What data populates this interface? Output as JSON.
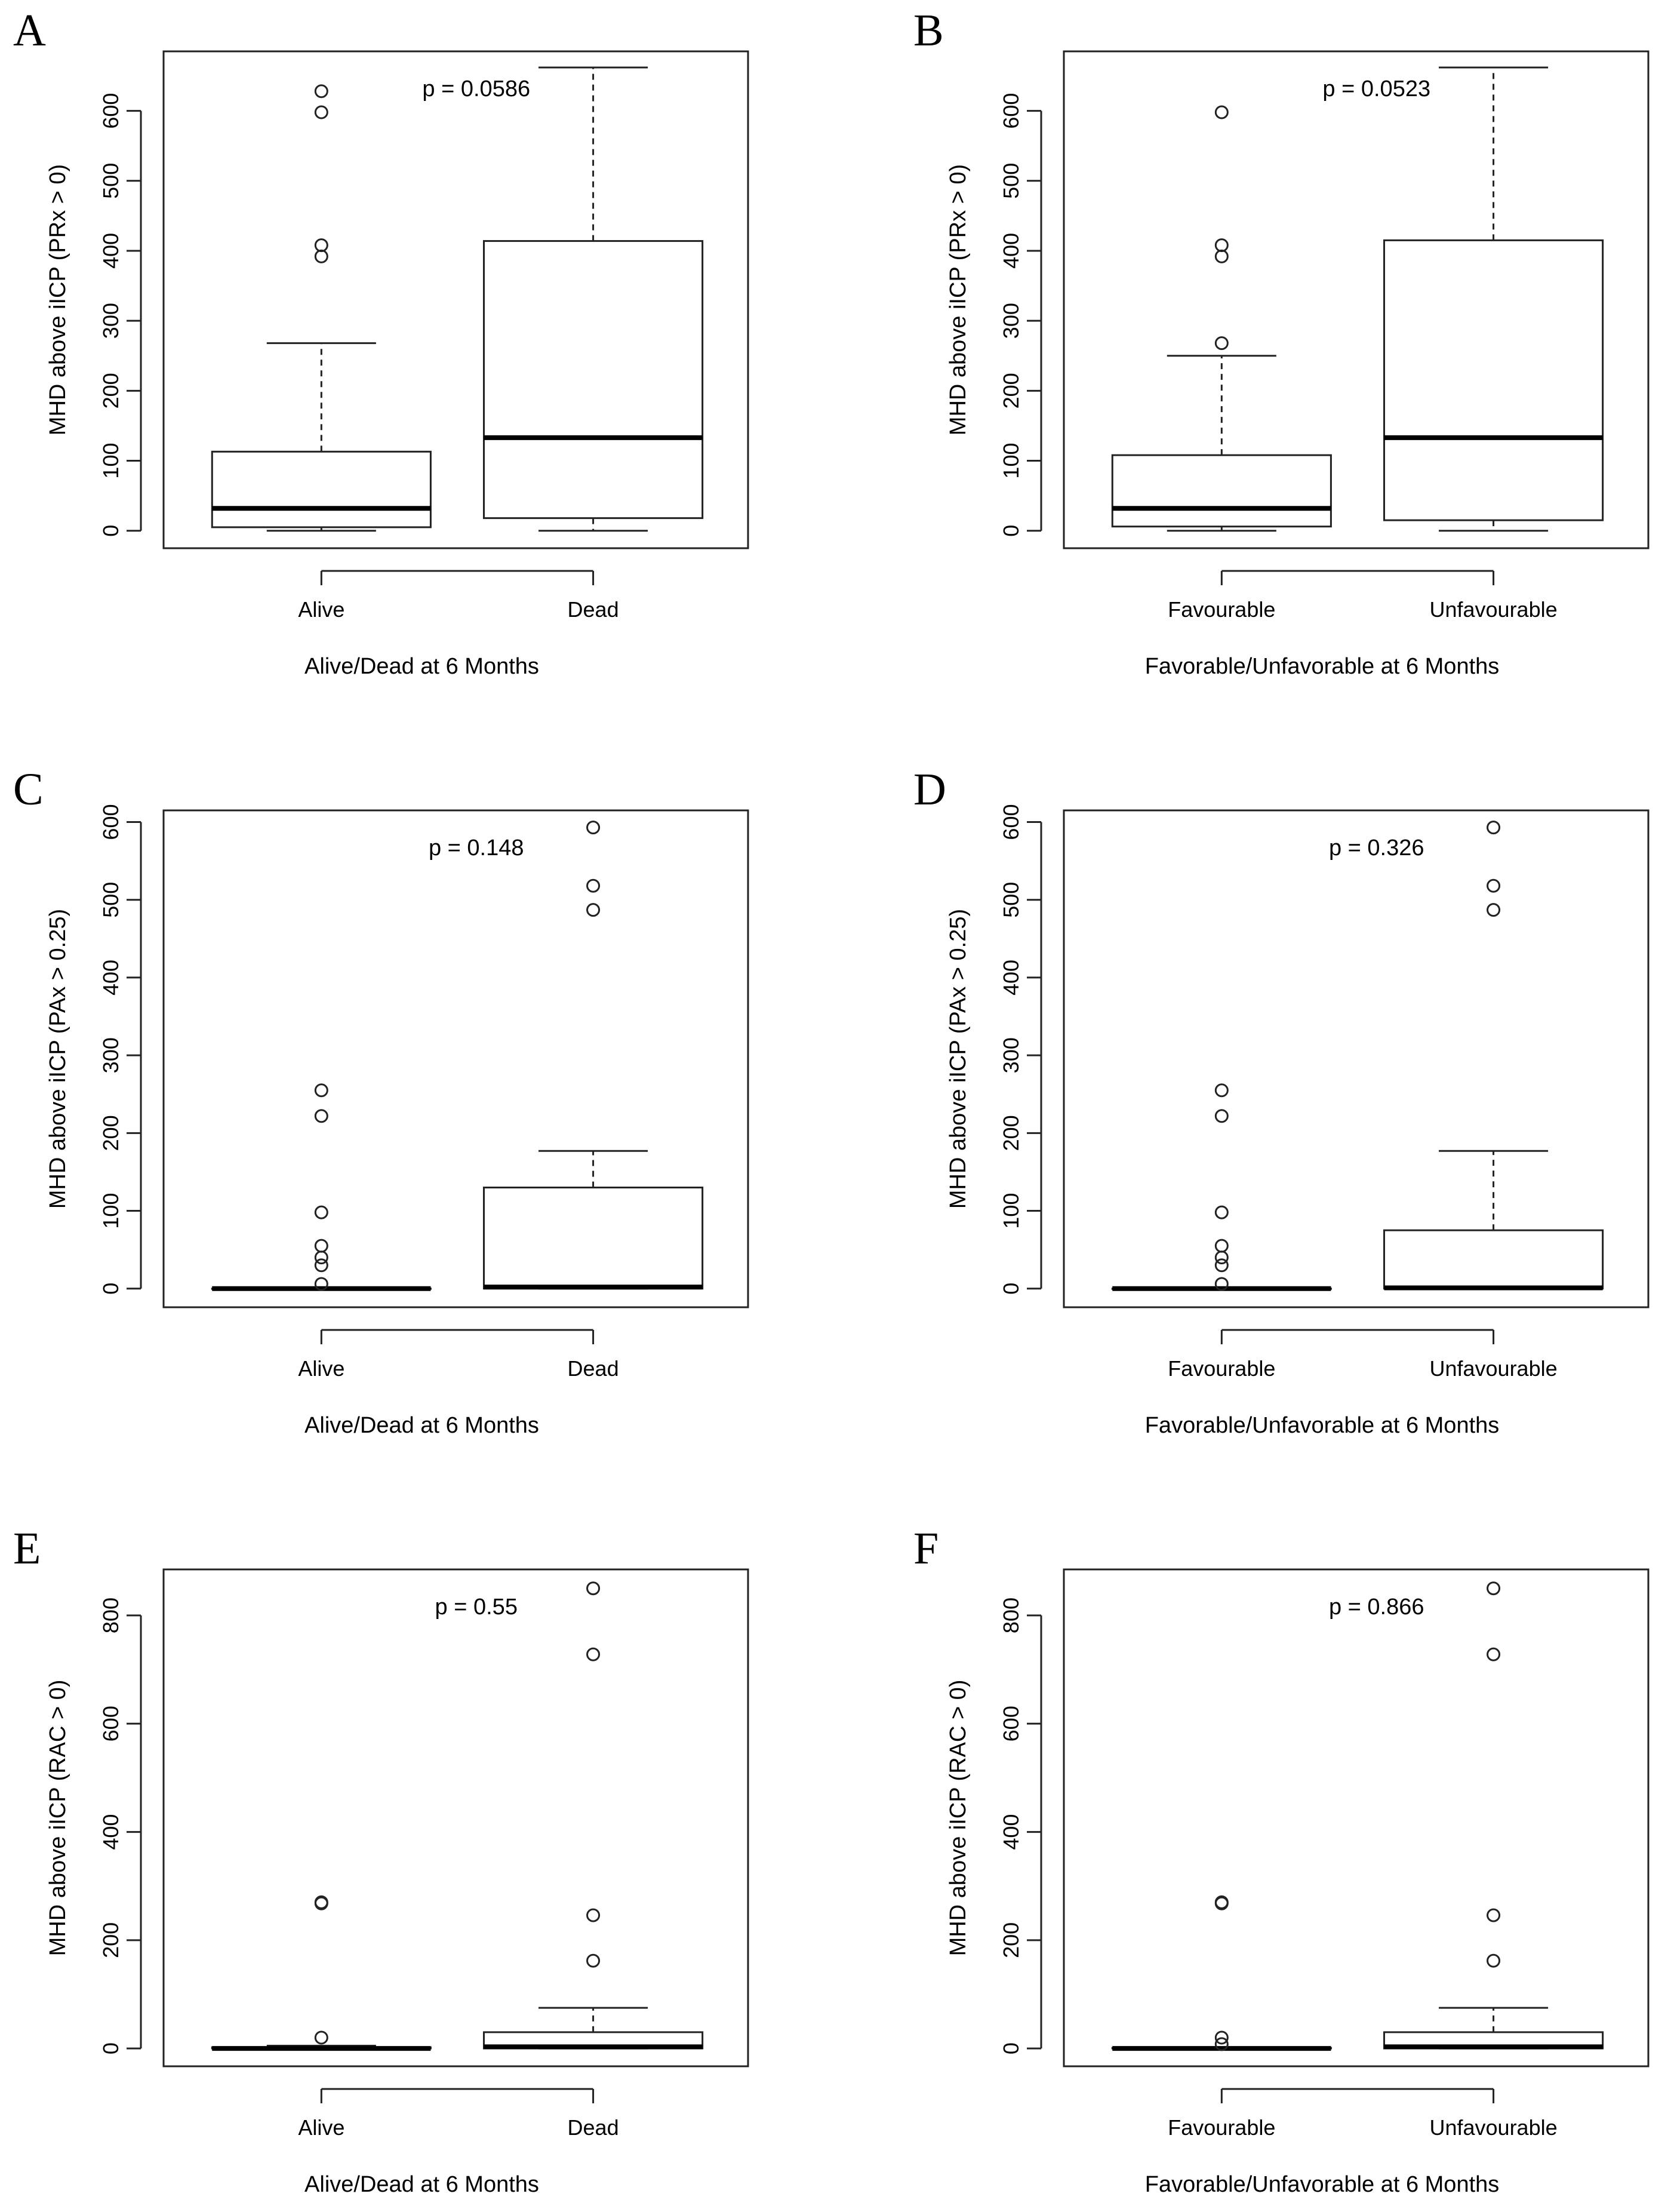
{
  "chart_data": [
    {
      "type": "boxplot",
      "panel_label": "A",
      "xlabel": "Alive/Dead at 6 Months",
      "ylabel": "MHD above iICP (PRx > 0)",
      "annotation": "p = 0.0586",
      "ylim": [
        -25,
        685
      ],
      "yticks": [
        0,
        100,
        200,
        300,
        400,
        500,
        600
      ],
      "categories": [
        "Alive",
        "Dead"
      ],
      "boxes": [
        {
          "name": "Alive",
          "whisker_low": 0,
          "q1": 5,
          "median": 32,
          "q3": 113,
          "whisker_high": 268,
          "outliers": [
            392,
            408,
            598,
            628
          ]
        },
        {
          "name": "Dead",
          "whisker_low": 0,
          "q1": 18,
          "median": 133,
          "q3": 414,
          "whisker_high": 662,
          "outliers": []
        }
      ]
    },
    {
      "type": "boxplot",
      "panel_label": "B",
      "xlabel": "Favorable/Unfavorable at 6 Months",
      "ylabel": "MHD above iICP (PRx > 0)",
      "annotation": "p = 0.0523",
      "ylim": [
        -25,
        685
      ],
      "yticks": [
        0,
        100,
        200,
        300,
        400,
        500,
        600
      ],
      "categories": [
        "Favourable",
        "Unfavourable"
      ],
      "boxes": [
        {
          "name": "Favourable",
          "whisker_low": 0,
          "q1": 6,
          "median": 32,
          "q3": 108,
          "whisker_high": 250,
          "outliers": [
            268,
            392,
            408,
            598
          ]
        },
        {
          "name": "Unfavourable",
          "whisker_low": 0,
          "q1": 15,
          "median": 133,
          "q3": 415,
          "whisker_high": 662,
          "outliers": []
        }
      ]
    },
    {
      "type": "boxplot",
      "panel_label": "C",
      "xlabel": "Alive/Dead at 6 Months",
      "ylabel": "MHD above iICP (PAx > 0.25)",
      "annotation": "p = 0.148",
      "ylim": [
        -24,
        615
      ],
      "yticks": [
        0,
        100,
        200,
        300,
        400,
        500,
        600
      ],
      "categories": [
        "Alive",
        "Dead"
      ],
      "boxes": [
        {
          "name": "Alive",
          "whisker_low": 0,
          "q1": 0,
          "median": 0,
          "q3": 0,
          "whisker_high": 0,
          "outliers": [
            6,
            30,
            40,
            55,
            98,
            222,
            255
          ]
        },
        {
          "name": "Dead",
          "whisker_low": 0,
          "q1": 0,
          "median": 2,
          "q3": 130,
          "whisker_high": 177,
          "outliers": [
            487,
            518,
            593
          ]
        }
      ]
    },
    {
      "type": "boxplot",
      "panel_label": "D",
      "xlabel": "Favorable/Unfavorable at 6 Months",
      "ylabel": "MHD above iICP (PAx > 0.25)",
      "annotation": "p = 0.326",
      "ylim": [
        -24,
        615
      ],
      "yticks": [
        0,
        100,
        200,
        300,
        400,
        500,
        600
      ],
      "categories": [
        "Favourable",
        "Unfavourable"
      ],
      "boxes": [
        {
          "name": "Favourable",
          "whisker_low": 0,
          "q1": 0,
          "median": 0,
          "q3": 0,
          "whisker_high": 0,
          "outliers": [
            6,
            30,
            40,
            55,
            98,
            222,
            255
          ]
        },
        {
          "name": "Unfavourable",
          "whisker_low": 0,
          "q1": 0,
          "median": 1,
          "q3": 75,
          "whisker_high": 177,
          "outliers": [
            487,
            518,
            593
          ]
        }
      ]
    },
    {
      "type": "boxplot",
      "panel_label": "E",
      "xlabel": "Alive/Dead at 6 Months",
      "ylabel": "MHD above iICP (RAC > 0)",
      "annotation": "p = 0.55",
      "ylim": [
        -33,
        885
      ],
      "yticks": [
        0,
        200,
        400,
        600,
        800
      ],
      "categories": [
        "Alive",
        "Dead"
      ],
      "boxes": [
        {
          "name": "Alive",
          "whisker_low": 0,
          "q1": 0,
          "median": 0,
          "q3": 2,
          "whisker_high": 5,
          "outliers": [
            20,
            268,
            270
          ]
        },
        {
          "name": "Dead",
          "whisker_low": 0,
          "q1": 0,
          "median": 3,
          "q3": 30,
          "whisker_high": 75,
          "outliers": [
            162,
            246,
            728,
            850
          ]
        }
      ]
    },
    {
      "type": "boxplot",
      "panel_label": "F",
      "xlabel": "Favorable/Unfavorable at 6 Months",
      "ylabel": "MHD above iICP (RAC > 0)",
      "annotation": "p = 0.866",
      "ylim": [
        -33,
        885
      ],
      "yticks": [
        0,
        200,
        400,
        600,
        800
      ],
      "categories": [
        "Favourable",
        "Unfavourable"
      ],
      "boxes": [
        {
          "name": "Favourable",
          "whisker_low": 0,
          "q1": 0,
          "median": 0,
          "q3": 1,
          "whisker_high": 2,
          "outliers": [
            8,
            20,
            268,
            270
          ]
        },
        {
          "name": "Unfavourable",
          "whisker_low": 0,
          "q1": 0,
          "median": 3,
          "q3": 30,
          "whisker_high": 75,
          "outliers": [
            162,
            246,
            728,
            850
          ]
        }
      ]
    }
  ]
}
